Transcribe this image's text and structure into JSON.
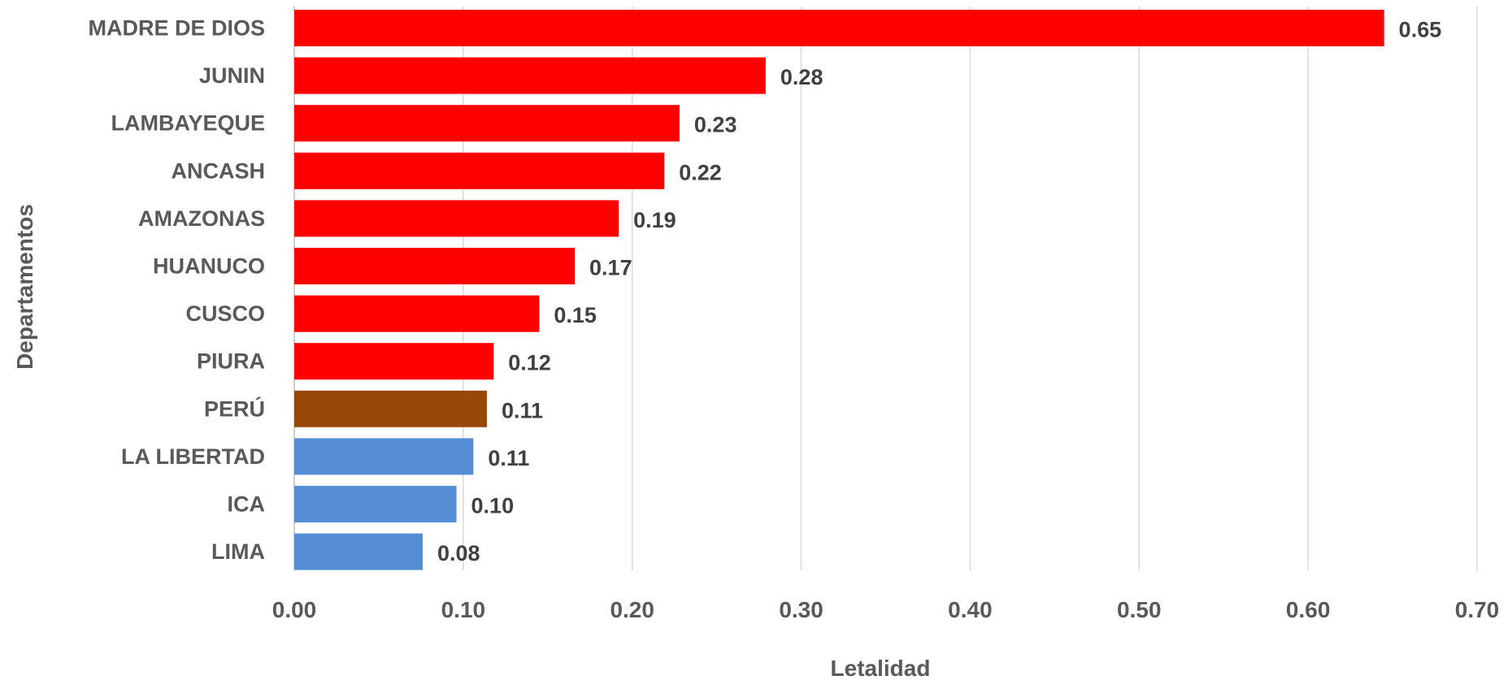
{
  "chart_data": {
    "type": "bar",
    "orientation": "horizontal",
    "categories": [
      "MADRE DE DIOS",
      "JUNIN",
      "LAMBAYEQUE",
      "ANCASH",
      "AMAZONAS",
      "HUANUCO",
      "CUSCO",
      "PIURA",
      "PERÚ",
      "LA LIBERTAD",
      "ICA",
      "LIMA"
    ],
    "values": [
      0.645,
      0.279,
      0.228,
      0.219,
      0.192,
      0.166,
      0.145,
      0.118,
      0.114,
      0.106,
      0.096,
      0.076
    ],
    "value_labels": [
      "0.65",
      "0.28",
      "0.23",
      "0.22",
      "0.19",
      "0.17",
      "0.15",
      "0.12",
      "0.11",
      "0.11",
      "0.10",
      "0.08"
    ],
    "bar_colors": [
      "#ff0000",
      "#ff0000",
      "#ff0000",
      "#ff0000",
      "#ff0000",
      "#ff0000",
      "#ff0000",
      "#ff0000",
      "#974806",
      "#558ed5",
      "#558ed5",
      "#558ed5"
    ],
    "xticks": [
      "0.00",
      "0.10",
      "0.20",
      "0.30",
      "0.40",
      "0.50",
      "0.60",
      "0.70"
    ],
    "xlim": [
      0,
      0.7
    ],
    "xlabel": "Letalidad",
    "ylabel": "Departamentos",
    "grid": "vertical"
  }
}
